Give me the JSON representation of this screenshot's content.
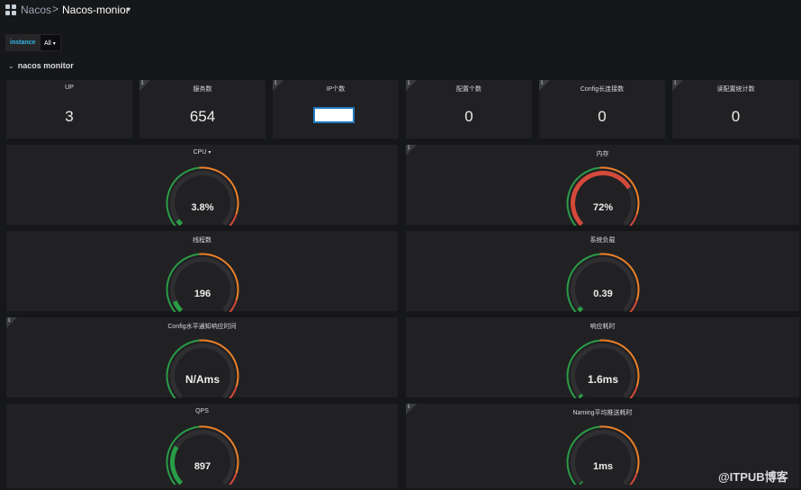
{
  "topbar": {
    "breadcrumb_root": "Nacos",
    "separator": ">",
    "dashboard_name": "Nacos-monior",
    "caret": "▾"
  },
  "variables": {
    "instance_label": "instance",
    "instance_value": "All",
    "caret": "▾"
  },
  "row": {
    "chevron": "⌄",
    "title": "nacos monitor"
  },
  "info_glyph": "i",
  "stats": [
    {
      "name": "up",
      "title": "UP",
      "value": "3",
      "has_info": false
    },
    {
      "name": "service-count",
      "title": "服务数",
      "value": "654",
      "has_info": true
    },
    {
      "name": "ip-count",
      "title": "IP个数",
      "value": "",
      "has_info": true
    },
    {
      "name": "config-count",
      "title": "配置个数",
      "value": "0",
      "has_info": true
    },
    {
      "name": "config-long-conn",
      "title": "Config长连接数",
      "value": "0",
      "has_info": true
    },
    {
      "name": "read-config-stat",
      "title": "读配置统计数",
      "value": "0",
      "has_info": true
    }
  ],
  "gauges": [
    {
      "name": "cpu",
      "title": "CPU",
      "title_caret": "▾",
      "display": "3.8%",
      "fill": 0.038,
      "color": "#299c46",
      "has_info": false
    },
    {
      "name": "memory",
      "title": "内存",
      "title_caret": "",
      "display": "72%",
      "fill": 0.72,
      "color": "#d44a3a",
      "has_info": true
    },
    {
      "name": "thread-count",
      "title": "线程数",
      "title_caret": "",
      "display": "196",
      "fill": 0.08,
      "color": "#299c46",
      "has_info": false
    },
    {
      "name": "system-load",
      "title": "系统负载",
      "title_caret": "",
      "display": "0.39",
      "fill": 0.03,
      "color": "#299c46",
      "has_info": false
    },
    {
      "name": "config-notify-rt",
      "title": "Config水平通知响应时间",
      "title_caret": "",
      "display": "N/Ams",
      "fill": 0,
      "color": "#299c46",
      "has_info": true
    },
    {
      "name": "response-time",
      "title": "响应耗时",
      "title_caret": "",
      "display": "1.6ms",
      "fill": 0.02,
      "color": "#299c46",
      "has_info": false
    },
    {
      "name": "qps",
      "title": "QPS",
      "title_caret": "",
      "display": "897",
      "fill": 0.28,
      "color": "#299c46",
      "has_info": false
    },
    {
      "name": "naming-push-rt",
      "title": "Naming平均推送耗时",
      "title_caret": "",
      "display": "1ms",
      "fill": 0.01,
      "color": "#299c46",
      "has_info": true
    }
  ],
  "colors": {
    "threshold_green": "#299c46",
    "threshold_orange": "#ed8128",
    "threshold_red": "#d44a3a",
    "track": "#2f2f32"
  },
  "watermark": "@ITPUB博客"
}
